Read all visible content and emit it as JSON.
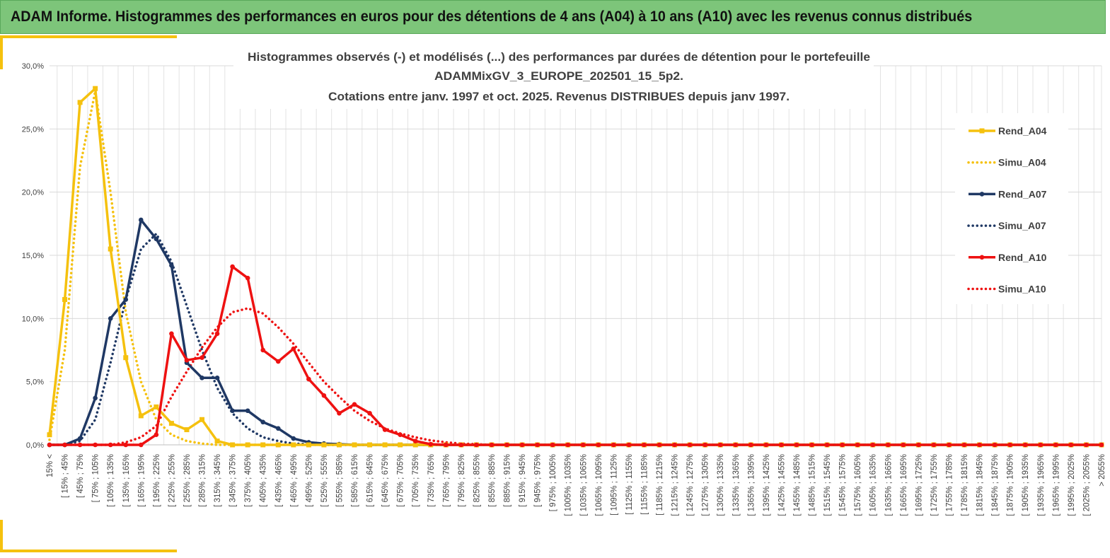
{
  "header": {
    "title": "ADAM Informe. Histogrammes des performances en euros pour des détentions de 4 ans (A04) à 10 ans (A10) avec les revenus connus distribués"
  },
  "colors": {
    "header_bg": "#7dc57a",
    "accent": "#f5c10e",
    "a04": "#f5c10e",
    "a07": "#1f3864",
    "a10": "#ee1111",
    "grid": "#d9d9d9"
  },
  "chart_data": {
    "type": "line",
    "title_lines": [
      "Histogrammes observés (-) et modélisés (...) des performances par durées de détention pour le portefeuille",
      "ADAMMixGV_3_EUROPE_202501_15_5p2.",
      "Cotations entre janv. 1997 et oct. 2025. Revenus DISTRIBUES depuis janv 1997."
    ],
    "ylim": [
      0,
      30
    ],
    "ytick_labels": [
      "0,0%",
      "5,0%",
      "10,0%",
      "15,0%",
      "20,0%",
      "25,0%",
      "30,0%"
    ],
    "grid": true,
    "legend_position": "right",
    "categories": [
      "15% <",
      "[ 15% ; 45%",
      "[ 45% ; 75%",
      "[ 75% ; 105%",
      "[ 105% ; 135%",
      "[ 135% ; 165%",
      "[ 165% ; 195%",
      "[ 195% ; 225%",
      "[ 225% ; 255%",
      "[ 255% ; 285%",
      "[ 285% ; 315%",
      "[ 315% ; 345%",
      "[ 345% ; 375%",
      "[ 375% ; 405%",
      "[ 405% ; 435%",
      "[ 435% ; 465%",
      "[ 465% ; 495%",
      "[ 495% ; 525%",
      "[ 525% ; 555%",
      "[ 555% ; 585%",
      "[ 585% ; 615%",
      "[ 615% ; 645%",
      "[ 645% ; 675%",
      "[ 675% ; 705%",
      "[ 705% ; 735%",
      "[ 735% ; 765%",
      "[ 765% ; 795%",
      "[ 795% ; 825%",
      "[ 825% ; 855%",
      "[ 855% ; 885%",
      "[ 885% ; 915%",
      "[ 915% ; 945%",
      "[ 945% ; 975%",
      "[ 975% ; 1005%",
      "[ 1005% ; 1035%",
      "[ 1035% ; 1065%",
      "[ 1065% ; 1095%",
      "[ 1095% ; 1125%",
      "[ 1125% ; 1155%",
      "[ 1155% ; 1185%",
      "[ 1185% ; 1215%",
      "[ 1215% ; 1245%",
      "[ 1245% ; 1275%",
      "[ 1275% ; 1305%",
      "[ 1305% ; 1335%",
      "[ 1335% ; 1365%",
      "[ 1365% ; 1395%",
      "[ 1395% ; 1425%",
      "[ 1425% ; 1455%",
      "[ 1455% ; 1485%",
      "[ 1485% ; 1515%",
      "[ 1515% ; 1545%",
      "[ 1545% ; 1575%",
      "[ 1575% ; 1605%",
      "[ 1605% ; 1635%",
      "[ 1635% ; 1665%",
      "[ 1665% ; 1695%",
      "[ 1695% ; 1725%",
      "[ 1725% ; 1755%",
      "[ 1755% ; 1785%",
      "[ 1785% ; 1815%",
      "[ 1815% ; 1845%",
      "[ 1845% ; 1875%",
      "[ 1875% ; 1905%",
      "[ 1905% ; 1935%",
      "[ 1935% ; 1965%",
      "[ 1965% ; 1995%",
      "[ 1995% ; 2025%",
      "[ 2025% ; 2055%",
      "> 2055%"
    ],
    "series": [
      {
        "name": "Rend_A04",
        "style": "solid",
        "marker": "square",
        "color": "#f5c10e",
        "values": [
          0.8,
          11.5,
          27.1,
          28.2,
          15.5,
          6.9,
          2.3,
          3.0,
          1.7,
          1.2,
          2.0,
          0.3,
          0,
          0,
          0,
          0,
          0,
          0,
          0,
          0,
          0,
          0,
          0,
          0,
          0,
          0,
          0,
          0,
          0,
          0,
          0,
          0,
          0,
          0,
          0,
          0,
          0,
          0,
          0,
          0,
          0,
          0,
          0,
          0,
          0,
          0,
          0,
          0,
          0,
          0,
          0,
          0,
          0,
          0,
          0,
          0,
          0,
          0,
          0,
          0,
          0,
          0,
          0,
          0,
          0,
          0,
          0,
          0,
          0,
          0
        ]
      },
      {
        "name": "Simu_A04",
        "style": "dotted",
        "color": "#f5c10e",
        "values": [
          0.4,
          7.5,
          22.0,
          28.0,
          20.0,
          10.5,
          5.0,
          2.0,
          0.8,
          0.3,
          0.1,
          0,
          0,
          0,
          0,
          0,
          0,
          0,
          0,
          0,
          0,
          0,
          0,
          0,
          0,
          0,
          0,
          0,
          0,
          0,
          0,
          0,
          0,
          0,
          0,
          0,
          0,
          0,
          0,
          0,
          0,
          0,
          0,
          0,
          0,
          0,
          0,
          0,
          0,
          0,
          0,
          0,
          0,
          0,
          0,
          0,
          0,
          0,
          0,
          0,
          0,
          0,
          0,
          0,
          0,
          0,
          0,
          0,
          0,
          0
        ]
      },
      {
        "name": "Rend_A07",
        "style": "solid",
        "marker": "circle",
        "color": "#1f3864",
        "values": [
          0,
          0,
          0.5,
          3.7,
          10.0,
          11.5,
          17.8,
          16.3,
          14.2,
          6.5,
          5.3,
          5.3,
          2.7,
          2.7,
          1.8,
          1.3,
          0.5,
          0.2,
          0.1,
          0.05,
          0,
          0,
          0,
          0,
          0,
          0,
          0,
          0,
          0,
          0,
          0,
          0,
          0,
          0,
          0,
          0,
          0,
          0,
          0,
          0,
          0,
          0,
          0,
          0,
          0,
          0,
          0,
          0,
          0,
          0,
          0,
          0,
          0,
          0,
          0,
          0,
          0,
          0,
          0,
          0,
          0,
          0,
          0,
          0,
          0,
          0,
          0,
          0,
          0,
          0
        ]
      },
      {
        "name": "Simu_A07",
        "style": "dotted",
        "color": "#1f3864",
        "values": [
          0,
          0,
          0.3,
          2.0,
          6.5,
          11.5,
          15.5,
          16.7,
          14.5,
          11.0,
          7.5,
          4.5,
          2.5,
          1.3,
          0.6,
          0.3,
          0.1,
          0.05,
          0,
          0,
          0,
          0,
          0,
          0,
          0,
          0,
          0,
          0,
          0,
          0,
          0,
          0,
          0,
          0,
          0,
          0,
          0,
          0,
          0,
          0,
          0,
          0,
          0,
          0,
          0,
          0,
          0,
          0,
          0,
          0,
          0,
          0,
          0,
          0,
          0,
          0,
          0,
          0,
          0,
          0,
          0,
          0,
          0,
          0,
          0,
          0,
          0,
          0,
          0,
          0
        ]
      },
      {
        "name": "Rend_A10",
        "style": "solid",
        "marker": "circle",
        "color": "#ee1111",
        "values": [
          0,
          0,
          0,
          0,
          0,
          0,
          0,
          0.8,
          8.8,
          6.7,
          6.9,
          8.8,
          14.1,
          13.2,
          7.5,
          6.6,
          7.6,
          5.2,
          3.9,
          2.5,
          3.2,
          2.5,
          1.2,
          0.8,
          0.3,
          0.05,
          0,
          0,
          0,
          0,
          0,
          0,
          0,
          0,
          0,
          0,
          0,
          0,
          0,
          0,
          0,
          0,
          0,
          0,
          0,
          0,
          0,
          0,
          0,
          0,
          0,
          0,
          0,
          0,
          0,
          0,
          0,
          0,
          0,
          0,
          0,
          0,
          0,
          0,
          0,
          0,
          0,
          0,
          0,
          0
        ]
      },
      {
        "name": "Simu_A10",
        "style": "dotted",
        "color": "#ee1111",
        "values": [
          0,
          0,
          0,
          0,
          0,
          0.2,
          0.6,
          1.5,
          3.8,
          5.8,
          7.7,
          9.3,
          10.5,
          10.8,
          10.4,
          9.3,
          8.0,
          6.5,
          5.0,
          3.8,
          2.7,
          1.9,
          1.3,
          0.9,
          0.6,
          0.35,
          0.2,
          0.1,
          0.05,
          0,
          0,
          0,
          0,
          0,
          0,
          0,
          0,
          0,
          0,
          0,
          0,
          0,
          0,
          0,
          0,
          0,
          0,
          0,
          0,
          0,
          0,
          0,
          0,
          0,
          0,
          0,
          0,
          0,
          0,
          0,
          0,
          0,
          0,
          0,
          0,
          0,
          0,
          0,
          0,
          0
        ]
      }
    ]
  }
}
